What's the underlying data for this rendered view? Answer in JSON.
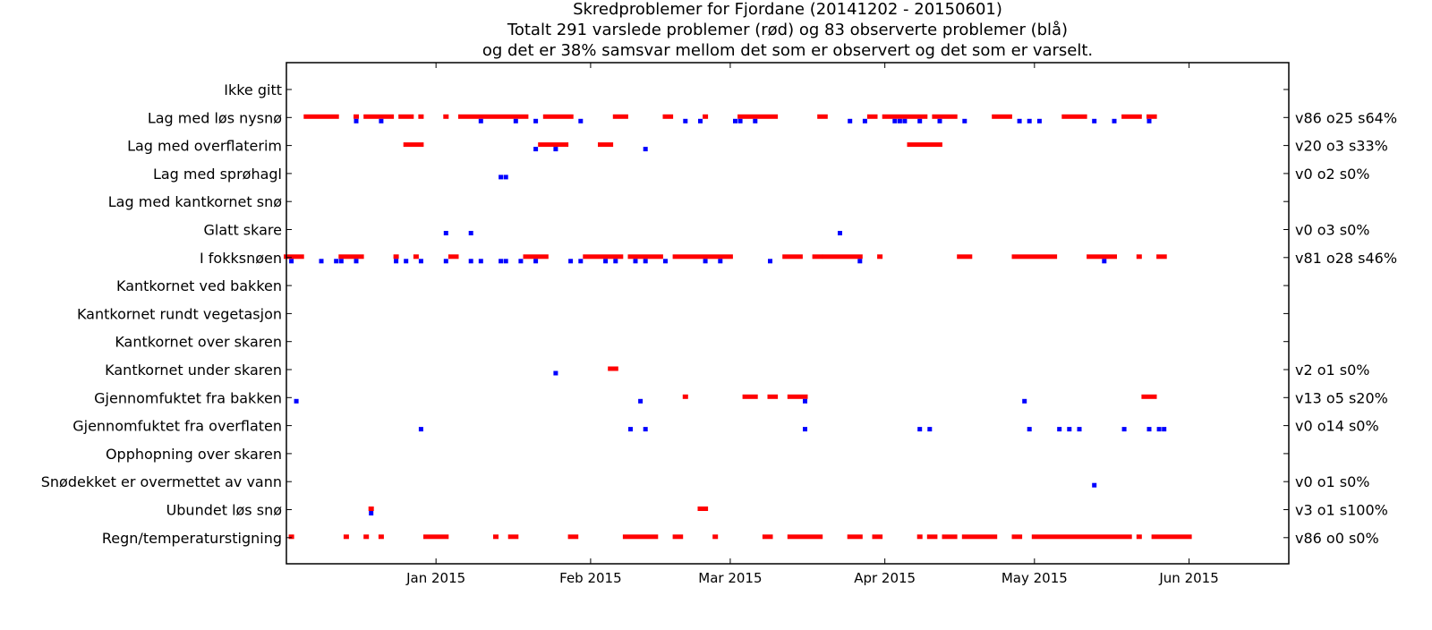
{
  "chart_data": {
    "type": "scatter",
    "title_lines": [
      "Skredproblemer for Fjordane (20141202 - 20150601)",
      "Totalt 291 varslede problemer (rød) og 83 observerte problemer (blå)",
      "og det er 38% samsvar mellom det som er observert og det som er varselt."
    ],
    "xlim": [
      "2014-12-02",
      "2015-06-21"
    ],
    "x_ticks": [
      {
        "date": "2015-01-01",
        "label": "Jan 2015"
      },
      {
        "date": "2015-02-01",
        "label": "Feb 2015"
      },
      {
        "date": "2015-03-01",
        "label": "Mar 2015"
      },
      {
        "date": "2015-04-01",
        "label": "Apr 2015"
      },
      {
        "date": "2015-05-01",
        "label": "May 2015"
      },
      {
        "date": "2015-06-01",
        "label": "Jun 2015"
      }
    ],
    "colors": {
      "forecast": "#ff0000",
      "observed": "#0000ff"
    },
    "categories": [
      {
        "label": "Ikke gitt",
        "stats": "",
        "forecast": [],
        "observed": []
      },
      {
        "label": "Lag med løs nysnø",
        "stats": "v86 o25 s64%",
        "forecast": [
          [
            "2014-12-06",
            "2014-12-12"
          ],
          [
            "2014-12-16",
            "2014-12-16"
          ],
          [
            "2014-12-18",
            "2014-12-23"
          ],
          [
            "2014-12-25",
            "2014-12-27"
          ],
          [
            "2014-12-29",
            "2014-12-29"
          ],
          [
            "2015-01-03",
            "2015-01-03"
          ],
          [
            "2015-01-06",
            "2015-01-19"
          ],
          [
            "2015-01-23",
            "2015-01-28"
          ],
          [
            "2015-02-06",
            "2015-02-08"
          ],
          [
            "2015-02-16",
            "2015-02-17"
          ],
          [
            "2015-02-24",
            "2015-02-24"
          ],
          [
            "2015-03-03",
            "2015-03-10"
          ],
          [
            "2015-03-19",
            "2015-03-20"
          ],
          [
            "2015-03-29",
            "2015-03-30"
          ],
          [
            "2015-04-01",
            "2015-04-09"
          ],
          [
            "2015-04-11",
            "2015-04-15"
          ],
          [
            "2015-04-23",
            "2015-04-26"
          ],
          [
            "2015-05-07",
            "2015-05-11"
          ],
          [
            "2015-05-19",
            "2015-05-22"
          ],
          [
            "2015-05-24",
            "2015-05-25"
          ]
        ],
        "observed": [
          "2014-12-16",
          "2014-12-21",
          "2015-01-10",
          "2015-01-17",
          "2015-01-21",
          "2015-01-30",
          "2015-02-20",
          "2015-02-23",
          "2015-03-02",
          "2015-03-03",
          "2015-03-06",
          "2015-03-25",
          "2015-03-28",
          "2015-04-03",
          "2015-04-04",
          "2015-04-05",
          "2015-04-08",
          "2015-04-12",
          "2015-04-17",
          "2015-04-28",
          "2015-04-30",
          "2015-05-02",
          "2015-05-13",
          "2015-05-17",
          "2015-05-24"
        ]
      },
      {
        "label": "Lag med overflaterim",
        "stats": "v20 o3 s33%",
        "forecast": [
          [
            "2014-12-26",
            "2014-12-29"
          ],
          [
            "2015-01-22",
            "2015-01-27"
          ],
          [
            "2015-02-03",
            "2015-02-05"
          ],
          [
            "2015-04-06",
            "2015-04-12"
          ]
        ],
        "observed": [
          "2015-01-21",
          "2015-01-25",
          "2015-02-12"
        ]
      },
      {
        "label": "Lag med sprøhagl",
        "stats": "v0 o2 s0%",
        "forecast": [],
        "observed": [
          "2015-01-14",
          "2015-01-15"
        ]
      },
      {
        "label": "Lag med kantkornet snø",
        "stats": "",
        "forecast": [],
        "observed": []
      },
      {
        "label": "Glatt skare",
        "stats": "v0 o3 s0%",
        "forecast": [],
        "observed": [
          "2015-01-03",
          "2015-01-08",
          "2015-03-23"
        ]
      },
      {
        "label": "I fokksnøen",
        "stats": "v81 o28 s46%",
        "forecast": [
          [
            "2014-12-02",
            "2014-12-05"
          ],
          [
            "2014-12-13",
            "2014-12-17"
          ],
          [
            "2014-12-24",
            "2014-12-24"
          ],
          [
            "2014-12-28",
            "2014-12-28"
          ],
          [
            "2015-01-04",
            "2015-01-05"
          ],
          [
            "2015-01-19",
            "2015-01-23"
          ],
          [
            "2015-01-31",
            "2015-02-07"
          ],
          [
            "2015-02-09",
            "2015-02-15"
          ],
          [
            "2015-02-18",
            "2015-03-01"
          ],
          [
            "2015-03-12",
            "2015-03-15"
          ],
          [
            "2015-03-18",
            "2015-03-19"
          ],
          [
            "2015-03-20",
            "2015-03-27"
          ],
          [
            "2015-03-31",
            "2015-03-31"
          ],
          [
            "2015-04-16",
            "2015-04-18"
          ],
          [
            "2015-04-27",
            "2015-05-05"
          ],
          [
            "2015-05-12",
            "2015-05-17"
          ],
          [
            "2015-05-22",
            "2015-05-22"
          ],
          [
            "2015-05-26",
            "2015-05-27"
          ]
        ],
        "observed": [
          "2014-12-03",
          "2014-12-09",
          "2014-12-12",
          "2014-12-13",
          "2014-12-16",
          "2014-12-24",
          "2014-12-26",
          "2014-12-29",
          "2015-01-03",
          "2015-01-08",
          "2015-01-10",
          "2015-01-14",
          "2015-01-15",
          "2015-01-18",
          "2015-01-21",
          "2015-01-28",
          "2015-01-30",
          "2015-02-04",
          "2015-02-06",
          "2015-02-10",
          "2015-02-12",
          "2015-02-16",
          "2015-02-24",
          "2015-02-27",
          "2015-03-09",
          "2015-03-27",
          "2015-05-15"
        ]
      },
      {
        "label": "Kantkornet ved bakken",
        "stats": "",
        "forecast": [],
        "observed": []
      },
      {
        "label": "Kantkornet rundt vegetasjon",
        "stats": "",
        "forecast": [],
        "observed": []
      },
      {
        "label": "Kantkornet over skaren",
        "stats": "",
        "forecast": [],
        "observed": []
      },
      {
        "label": "Kantkornet under skaren",
        "stats": "v2 o1 s0%",
        "forecast": [
          [
            "2015-02-05",
            "2015-02-06"
          ]
        ],
        "observed": [
          "2015-01-25"
        ]
      },
      {
        "label": "Gjennomfuktet fra bakken",
        "stats": "v13 o5 s20%",
        "forecast": [
          [
            "2015-02-20",
            "2015-02-20"
          ],
          [
            "2015-03-04",
            "2015-03-06"
          ],
          [
            "2015-03-09",
            "2015-03-10"
          ],
          [
            "2015-03-13",
            "2015-03-16"
          ],
          [
            "2015-05-23",
            "2015-05-25"
          ]
        ],
        "observed": [
          "2014-12-04",
          "2015-02-11",
          "2015-03-16",
          "2015-04-29"
        ]
      },
      {
        "label": "Gjennomfuktet fra overflaten",
        "stats": "v0 o14 s0%",
        "forecast": [],
        "observed": [
          "2014-12-29",
          "2015-02-09",
          "2015-02-12",
          "2015-03-16",
          "2015-04-08",
          "2015-04-10",
          "2015-04-30",
          "2015-05-06",
          "2015-05-08",
          "2015-05-10",
          "2015-05-19",
          "2015-05-24",
          "2015-05-26",
          "2015-05-27"
        ]
      },
      {
        "label": "Opphopning over skaren",
        "stats": "",
        "forecast": [],
        "observed": []
      },
      {
        "label": "Snødekket er overmettet av vann",
        "stats": "v0 o1 s0%",
        "forecast": [],
        "observed": [
          "2015-05-13"
        ]
      },
      {
        "label": "Ubundet løs snø",
        "stats": "v3 o1 s100%",
        "forecast": [
          [
            "2014-12-19",
            "2014-12-19"
          ],
          [
            "2015-02-23",
            "2015-02-24"
          ]
        ],
        "observed": [
          "2014-12-19"
        ]
      },
      {
        "label": "Regn/temperaturstigning",
        "stats": "v86 o0 s0%",
        "forecast": [
          [
            "2014-12-03",
            "2014-12-03"
          ],
          [
            "2014-12-14",
            "2014-12-14"
          ],
          [
            "2014-12-18",
            "2014-12-18"
          ],
          [
            "2014-12-21",
            "2014-12-21"
          ],
          [
            "2014-12-30",
            "2015-01-03"
          ],
          [
            "2015-01-13",
            "2015-01-13"
          ],
          [
            "2015-01-16",
            "2015-01-17"
          ],
          [
            "2015-01-28",
            "2015-01-29"
          ],
          [
            "2015-02-08",
            "2015-02-14"
          ],
          [
            "2015-02-18",
            "2015-02-19"
          ],
          [
            "2015-02-26",
            "2015-02-26"
          ],
          [
            "2015-03-08",
            "2015-03-09"
          ],
          [
            "2015-03-13",
            "2015-03-19"
          ],
          [
            "2015-03-25",
            "2015-03-27"
          ],
          [
            "2015-03-30",
            "2015-03-31"
          ],
          [
            "2015-04-08",
            "2015-04-08"
          ],
          [
            "2015-04-10",
            "2015-04-11"
          ],
          [
            "2015-04-13",
            "2015-04-15"
          ],
          [
            "2015-04-17",
            "2015-04-23"
          ],
          [
            "2015-04-27",
            "2015-04-28"
          ],
          [
            "2015-05-01",
            "2015-05-20"
          ],
          [
            "2015-05-22",
            "2015-05-22"
          ],
          [
            "2015-05-25",
            "2015-06-01"
          ]
        ],
        "observed": []
      }
    ]
  }
}
